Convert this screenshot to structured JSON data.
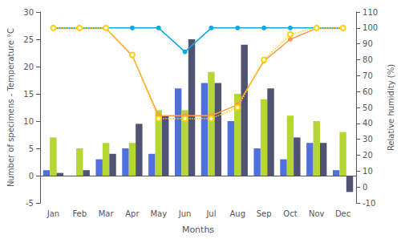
{
  "chart_data": {
    "type": "bar",
    "categories": [
      "Jan",
      "Feb",
      "Mar",
      "Apr",
      "May",
      "Jun",
      "Jul",
      "Aug",
      "Sep",
      "Oct",
      "Nov",
      "Dec"
    ],
    "xlabel": "Months",
    "ylabel": "Number of specimens - Temperature °C",
    "y2label": "Relative humidity (%)",
    "ylim": [
      -5,
      30
    ],
    "yticks": [
      -5,
      0,
      5,
      10,
      15,
      20,
      25,
      30
    ],
    "y2lim": [
      -10,
      110
    ],
    "y2ticks": [
      -10,
      0,
      10,
      20,
      30,
      40,
      50,
      60,
      70,
      80,
      90,
      100,
      110
    ],
    "grid": false,
    "series": [
      {
        "type": "bar",
        "values": [
          1,
          0,
          3,
          5,
          4,
          16,
          17,
          10,
          5,
          3,
          6,
          1
        ]
      },
      {
        "type": "bar",
        "values": [
          7,
          5,
          6,
          6,
          12,
          12,
          19,
          15,
          14,
          11,
          10,
          8
        ]
      },
      {
        "type": "bar",
        "values": [
          0.5,
          1,
          4,
          9.5,
          11,
          25,
          17,
          24,
          16,
          7,
          6,
          -3
        ]
      },
      {
        "type": "line",
        "values": [
          27,
          27,
          27,
          22,
          11,
          11,
          11,
          13,
          21,
          25,
          27,
          27
        ],
        "marker": "circle",
        "line_style": "solid"
      },
      {
        "type": "line",
        "axis": "y2",
        "values": [
          100,
          100,
          100,
          100,
          100,
          85,
          100,
          100,
          100,
          100,
          100,
          100
        ],
        "marker": "circle",
        "line_style": "solid"
      },
      {
        "type": "line",
        "axis": "y2",
        "values": [
          100,
          100,
          100,
          83,
          43,
          43,
          43,
          50,
          80,
          96,
          100,
          100
        ],
        "marker": "emptyCircle",
        "line_style": "dotted"
      }
    ]
  }
}
